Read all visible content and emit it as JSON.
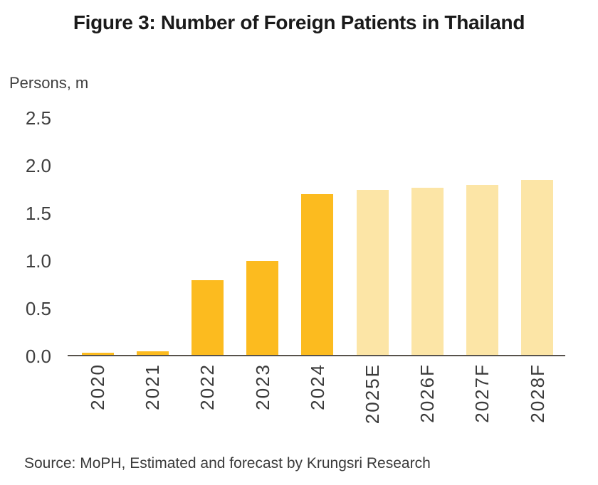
{
  "header": {
    "title": "Figure 3: Number of Foreign Patients in Thailand"
  },
  "chart_data": {
    "type": "bar",
    "title": "Figure 3: Number of Foreign Patients in Thailand",
    "ylabel": "Persons, m",
    "xlabel": "",
    "categories": [
      "2020",
      "2021",
      "2022",
      "2023",
      "2024",
      "2025E",
      "2026F",
      "2027F",
      "2028F"
    ],
    "values": [
      0.04,
      0.05,
      0.8,
      1.0,
      1.7,
      1.75,
      1.77,
      1.8,
      1.85
    ],
    "bar_styles": [
      "actual",
      "actual",
      "actual",
      "actual",
      "actual",
      "forecast",
      "forecast",
      "forecast",
      "forecast"
    ],
    "colors": {
      "actual": "#FCBB1F",
      "forecast": "#FCE5A6",
      "axis": "#57524c",
      "tick_text": "#3f3f3f",
      "title_text": "#1a1a1a"
    },
    "ylim": [
      0,
      2.5
    ],
    "yticks": [
      0,
      0.5,
      1.0,
      1.5,
      2.0,
      2.5
    ],
    "ytick_labels": [
      "0.0",
      "0.5",
      "1.0",
      "1.5",
      "2.0",
      "2.5"
    ],
    "grid": false,
    "legend": "none"
  },
  "footer": {
    "source": "Source: MoPH, Estimated and forecast by Krungsri Research"
  }
}
